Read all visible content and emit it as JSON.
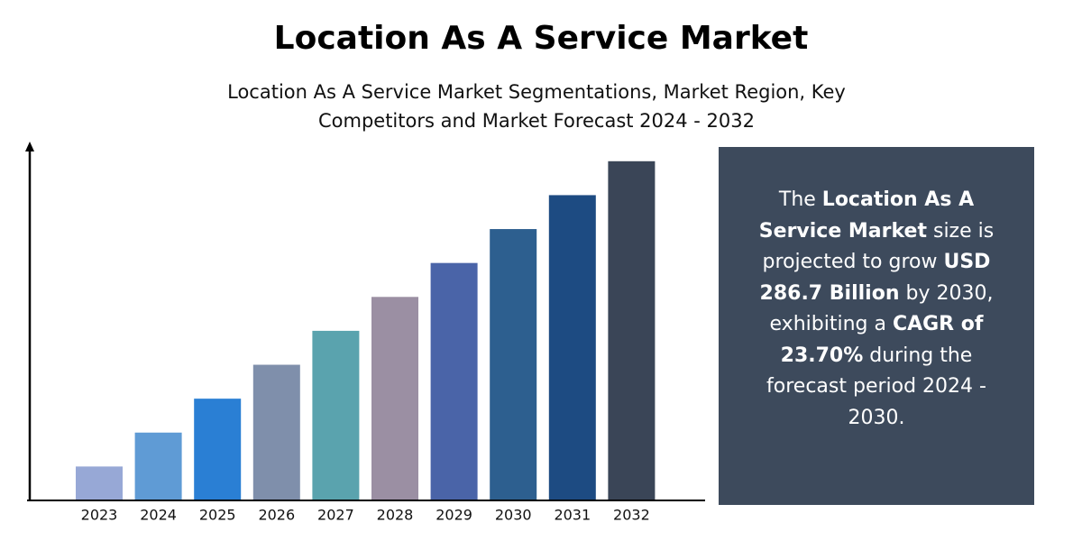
{
  "chart_data": {
    "type": "bar",
    "title": "Location As A Service Market",
    "subtitle": "Location As A Service Market Segmentations, Market Region, Key Competitors and Market Forecast 2024 - 2032",
    "categories": [
      "2023",
      "2024",
      "2025",
      "2026",
      "2027",
      "2028",
      "2029",
      "2030",
      "2031",
      "2032"
    ],
    "values": [
      1,
      2,
      3,
      4,
      5,
      6,
      7,
      8,
      9,
      10
    ],
    "colors": [
      "#97a8d6",
      "#5f9bd5",
      "#2a7fd4",
      "#7f8fab",
      "#5aa3ae",
      "#9b8fa3",
      "#4a64a8",
      "#2d5f8f",
      "#1d4b82",
      "#3a4557"
    ],
    "ylim": [
      0,
      10.5
    ],
    "annotation": {
      "segments": [
        {
          "text": "The ",
          "bold": false
        },
        {
          "text": "Location As A Service Market",
          "bold": true
        },
        {
          "text": " size is projected to grow ",
          "bold": false
        },
        {
          "text": "USD 286.7 Billion",
          "bold": true
        },
        {
          "text": " by 2030, exhibiting a ",
          "bold": false
        },
        {
          "text": "CAGR of 23.70%",
          "bold": true
        },
        {
          "text": " during the forecast period 2024 - 2030.",
          "bold": false
        }
      ]
    }
  }
}
